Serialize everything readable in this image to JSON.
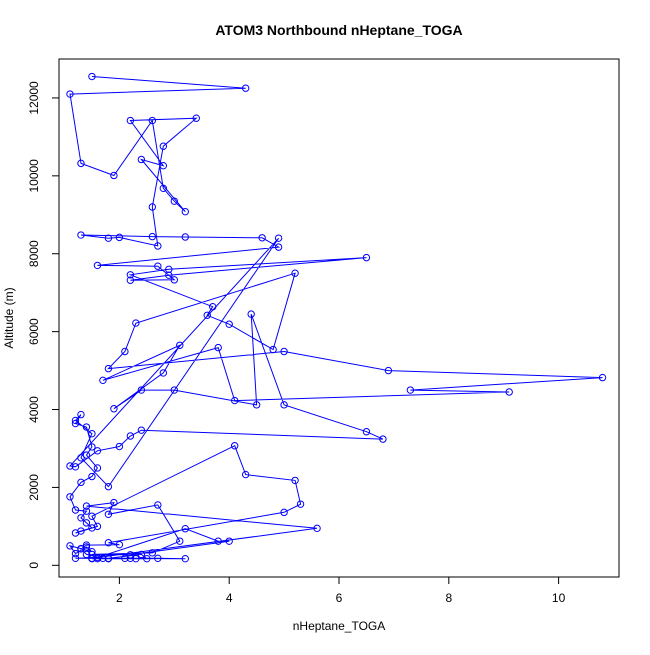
{
  "chart_data": {
    "type": "line",
    "title": "ATOM3 Northbound nHeptane_TOGA",
    "xlabel": "nHeptane_TOGA",
    "ylabel": "Altitude (m)",
    "xlim": [
      0.9,
      11.1
    ],
    "ylim": [
      -300,
      13000
    ],
    "x_ticks": [
      2,
      4,
      6,
      8,
      10
    ],
    "y_ticks": [
      0,
      2000,
      4000,
      6000,
      8000,
      10000,
      12000
    ],
    "grid": false,
    "legend": "none",
    "marker": "open-circle",
    "color": "#0000ff",
    "series": [
      {
        "x": [
          1.5,
          4.3,
          1.1,
          1.3,
          1.9,
          2.6,
          2.8,
          3.0,
          3.2,
          2.4,
          2.8,
          2.2,
          3.4,
          2.8,
          2.6,
          2.7,
          2.0,
          1.8,
          1.3,
          2.6,
          3.2,
          4.6,
          4.9,
          1.6,
          2.7,
          3.0,
          2.2,
          2.9,
          6.5,
          2.9,
          2.2,
          3.7,
          3.6,
          4.0,
          4.8,
          5.2,
          2.3,
          2.1,
          1.8,
          5.0,
          6.9,
          10.8,
          7.3,
          9.1,
          4.1,
          3.8,
          1.7,
          3.1,
          2.8,
          1.9,
          2.4,
          3.0,
          4.5,
          4.4,
          5.0,
          6.5,
          6.8,
          2.4,
          2.2,
          2.0,
          1.6,
          1.2,
          1.1,
          4.9,
          1.8,
          1.3,
          1.5,
          1.2,
          1.3,
          1.2,
          1.4,
          1.5,
          1.4,
          1.6,
          1.5,
          1.3,
          1.1,
          1.2,
          1.4,
          1.3,
          1.4,
          1.5,
          1.3,
          1.2,
          1.6,
          1.5,
          4.1,
          4.3,
          5.2,
          5.3,
          5.0,
          1.8,
          2.0,
          1.4,
          1.3,
          1.5,
          1.4,
          1.2,
          1.1,
          1.3,
          1.4,
          1.7,
          2.7,
          3.2,
          1.2,
          1.6,
          3.2,
          3.8,
          4.0,
          2.2,
          1.5,
          2.6,
          3.1,
          2.7,
          1.8,
          1.9,
          1.4,
          5.6,
          1.5,
          1.8,
          1.6,
          2.1,
          2.2,
          1.5,
          2.3,
          2.5,
          2.4,
          1.8,
          1.5
        ],
        "y": [
          12550,
          12250,
          12100,
          10320,
          10010,
          11420,
          9680,
          9350,
          9080,
          10420,
          10260,
          11420,
          11480,
          10760,
          9200,
          8200,
          8420,
          8400,
          8480,
          8440,
          8430,
          8410,
          8170,
          7700,
          7680,
          7330,
          7320,
          7450,
          7900,
          7600,
          7460,
          6640,
          6420,
          6190,
          5540,
          7500,
          6220,
          5490,
          5050,
          5490,
          5000,
          4820,
          4500,
          4450,
          4230,
          5590,
          4750,
          5650,
          4940,
          4020,
          4500,
          4500,
          4120,
          6450,
          4120,
          3430,
          3240,
          3470,
          3320,
          3050,
          2940,
          2530,
          2550,
          8400,
          2020,
          2760,
          3380,
          3720,
          3870,
          3640,
          3550,
          3040,
          2830,
          2500,
          2280,
          2130,
          1760,
          1420,
          1390,
          1220,
          1090,
          960,
          880,
          830,
          1000,
          1260,
          3070,
          2330,
          2180,
          1570,
          1360,
          580,
          530,
          520,
          420,
          350,
          470,
          300,
          500,
          430,
          280,
          180,
          180,
          170,
          180,
          200,
          940,
          620,
          620,
          270,
          280,
          320,
          620,
          1550,
          1310,
          1610,
          1520,
          950,
          180,
          170,
          170,
          180,
          180,
          170,
          170,
          170,
          280,
          180,
          180
        ]
      }
    ]
  }
}
